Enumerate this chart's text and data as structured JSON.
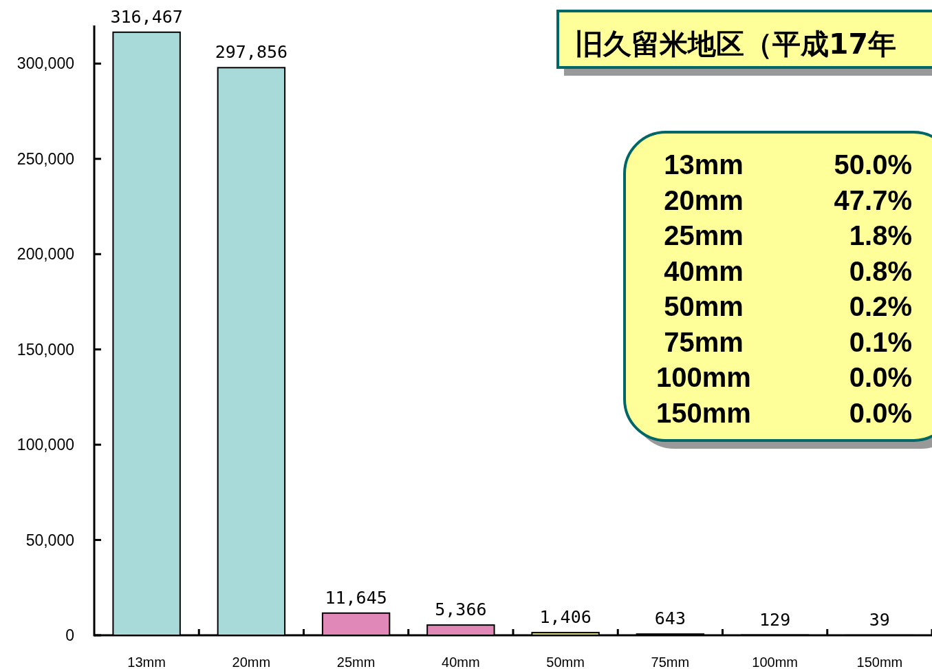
{
  "chart_data": {
    "type": "bar",
    "title": "旧久留米地区（平成17年",
    "categories": [
      "13mm",
      "20mm",
      "25mm",
      "40mm",
      "50mm",
      "75mm",
      "100mm",
      "150mm"
    ],
    "values": [
      316467,
      297856,
      11645,
      5366,
      1406,
      643,
      129,
      39
    ],
    "value_labels": [
      "316,467",
      "297,856",
      "11,645",
      "5,366",
      "1,406",
      "643",
      "129",
      "39"
    ],
    "colors": [
      "#a8dada",
      "#a8dada",
      "#e088b8",
      "#e088b8",
      "#e0e080",
      "#e0e080",
      "#e0e080",
      "#e0e080"
    ],
    "ylim": [
      0,
      320000
    ],
    "yticks": [
      {
        "value": 0,
        "label": "0"
      },
      {
        "value": 50000,
        "label": "50,000"
      },
      {
        "value": 100000,
        "label": "100,000"
      },
      {
        "value": 150000,
        "label": "150,000"
      },
      {
        "value": 200000,
        "label": "200,000"
      },
      {
        "value": 250000,
        "label": "250,000"
      },
      {
        "value": 300000,
        "label": "300,000"
      }
    ],
    "annotations": [
      "13mm",
      "50.0%",
      "20mm",
      "47.7%",
      "25mm",
      "1.8%",
      "40mm",
      "0.8%",
      "50mm",
      "0.2%",
      "75mm",
      "0.1%",
      "100mm",
      "0.0%",
      "150mm",
      "0.0%"
    ]
  }
}
